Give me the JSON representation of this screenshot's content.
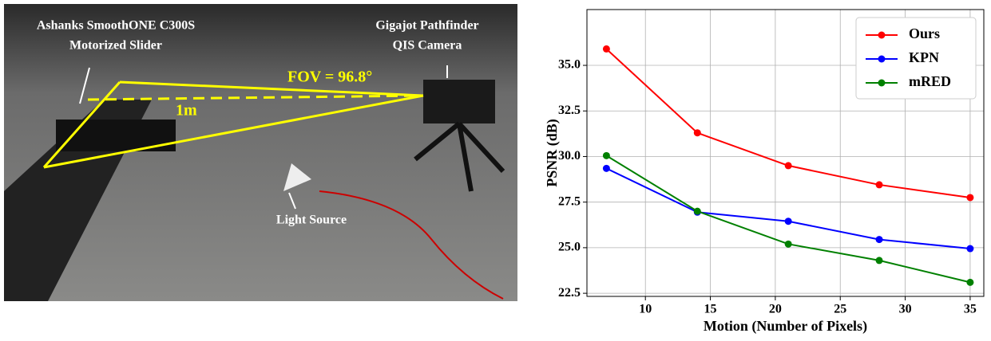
{
  "photo": {
    "labels": [
      "Ashanks SmoothONE C300S",
      "Motorized Slider",
      "Gigajot Pathfinder",
      "QIS Camera",
      "FOV = 96.8°",
      "1m",
      "Light Source"
    ]
  },
  "chart_data": {
    "type": "line",
    "x_label": "Motion (Number of Pixels)",
    "y_label": "PSNR (dB)",
    "x": [
      7,
      14,
      21,
      28,
      35
    ],
    "series": [
      {
        "name": "Ours",
        "color": "#ff0000",
        "values": [
          35.9,
          31.3,
          29.5,
          28.45,
          27.75
        ]
      },
      {
        "name": "KPN",
        "color": "#0000ff",
        "values": [
          29.35,
          26.95,
          26.45,
          25.45,
          24.95
        ]
      },
      {
        "name": "mRED",
        "color": "#008000",
        "values": [
          30.05,
          27.0,
          25.2,
          24.3,
          23.1
        ]
      }
    ],
    "xlim": [
      5.5,
      36.05
    ],
    "ylim": [
      22.33,
      38.06
    ],
    "xticks": [
      10,
      15,
      20,
      25,
      30,
      35
    ],
    "yticks": [
      22.5,
      {
        "value": 25,
        "label": "25.0"
      },
      {
        "value": 27.5,
        "label": "27.5"
      },
      {
        "value": 30,
        "label": "30.0"
      },
      {
        "value": 32.5,
        "label": "32.5"
      },
      {
        "value": 35,
        "label": "35.0"
      }
    ],
    "grid": true,
    "legend": "upper right"
  }
}
